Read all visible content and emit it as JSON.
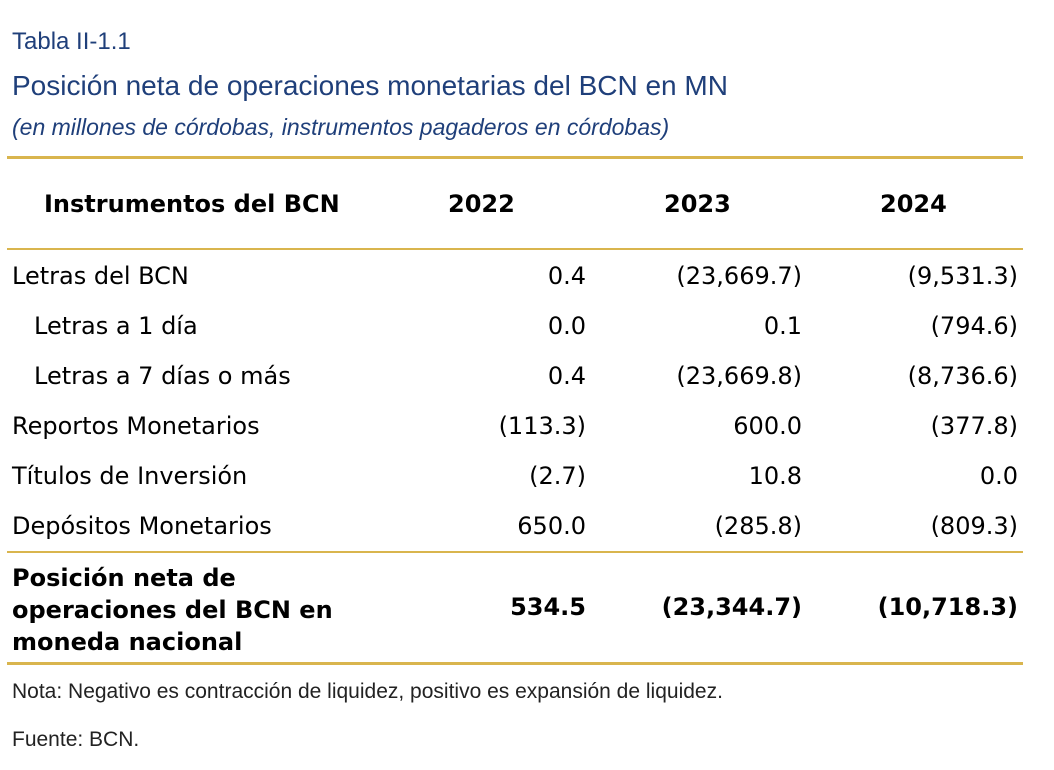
{
  "table_label": "Tabla II-1.1",
  "title": "Posición neta de operaciones monetarias del BCN en MN",
  "subtitle": "(en millones de córdobas, instrumentos pagaderos en córdobas)",
  "header": {
    "instrument": "Instrumentos del BCN",
    "years": [
      "2022",
      "2023",
      "2024"
    ]
  },
  "rows": [
    {
      "label": "Letras del BCN",
      "values": [
        "0.4",
        "(23,669.7)",
        "(9,531.3)"
      ]
    },
    {
      "label": "Letras a 1 día",
      "values": [
        "0.0",
        "0.1",
        "(794.6)"
      ]
    },
    {
      "label": "Letras a 7 días o más",
      "values": [
        "0.4",
        "(23,669.8)",
        "(8,736.6)"
      ]
    },
    {
      "label": "Reportos Monetarios",
      "values": [
        "(113.3)",
        "600.0",
        "(377.8)"
      ]
    },
    {
      "label": "Títulos de Inversión",
      "values": [
        "(2.7)",
        "10.8",
        "0.0"
      ]
    },
    {
      "label": "Depósitos Monetarios",
      "values": [
        "650.0",
        "(285.8)",
        "(809.3)"
      ]
    }
  ],
  "total": {
    "label_lines": [
      "Posición neta de",
      "operaciones del BCN en",
      "moneda nacional"
    ],
    "values": [
      "534.5",
      "(23,344.7)",
      "(10,718.3)"
    ]
  },
  "note": "Nota: Negativo es contracción de liquidez, positivo es expansión de liquidez.",
  "source": "Fuente: BCN.",
  "colors": {
    "title": "#1f3f7a",
    "rule": "#d9b54e"
  }
}
